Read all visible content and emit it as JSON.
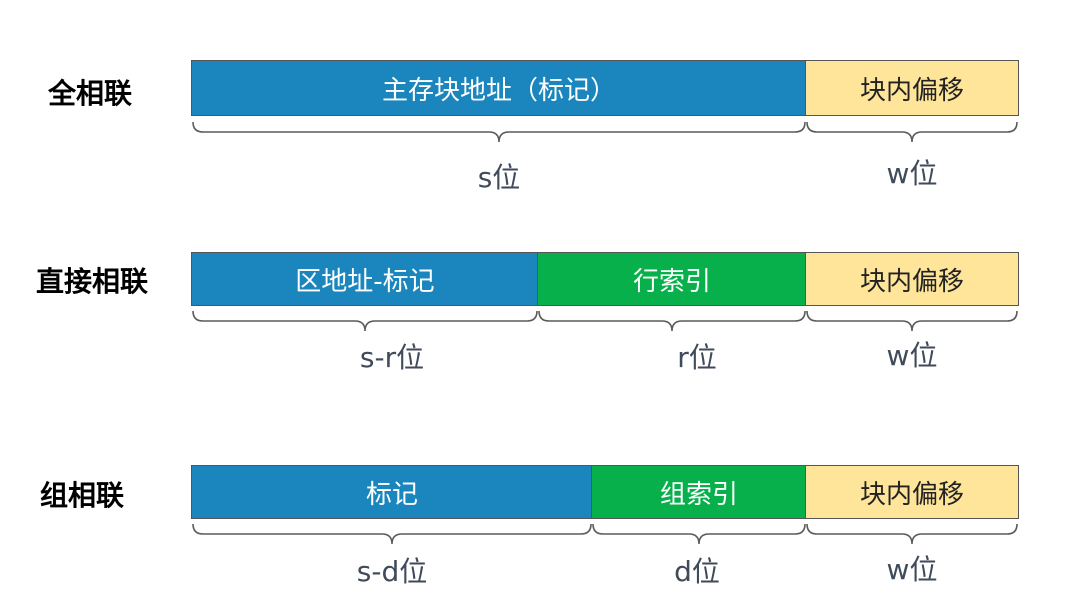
{
  "rows": [
    {
      "label": "全相联",
      "segments": [
        {
          "text": "主存块地址（标记）",
          "color": "blue"
        },
        {
          "text": "块内偏移",
          "color": "yellow"
        }
      ],
      "bits": [
        "s位",
        "w位"
      ]
    },
    {
      "label": "直接相联",
      "segments": [
        {
          "text": "区地址-标记",
          "color": "blue"
        },
        {
          "text": "行索引",
          "color": "green"
        },
        {
          "text": "块内偏移",
          "color": "yellow"
        }
      ],
      "bits": [
        "s-r位",
        "r位",
        "w位"
      ]
    },
    {
      "label": "组相联",
      "segments": [
        {
          "text": "标记",
          "color": "blue"
        },
        {
          "text": "组索引",
          "color": "green"
        },
        {
          "text": "块内偏移",
          "color": "yellow"
        }
      ],
      "bits": [
        "s-d位",
        "d位",
        "w位"
      ]
    }
  ],
  "colors": {
    "blue": "#1a86bd",
    "green": "#07b04a",
    "yellow": "#ffe599"
  }
}
